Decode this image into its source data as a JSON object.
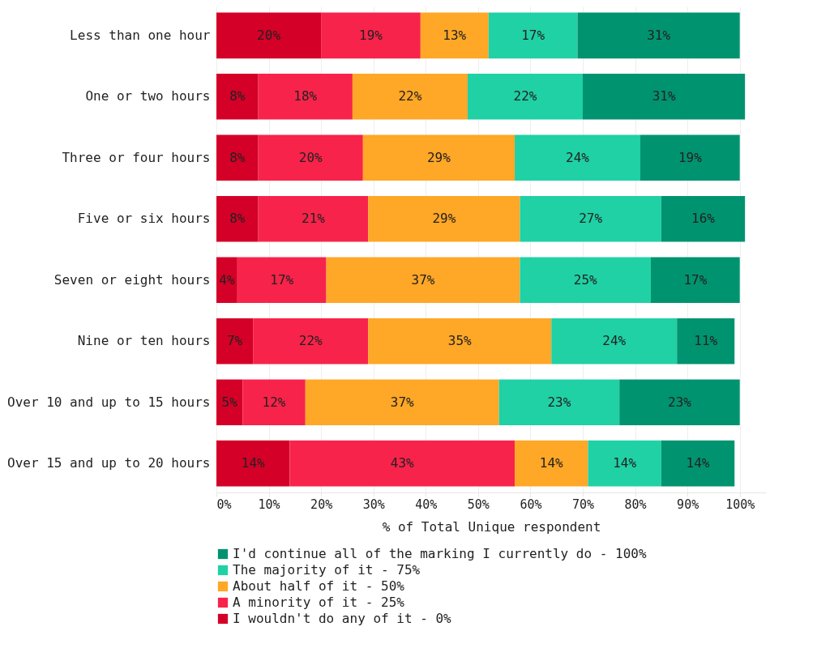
{
  "chart_data": {
    "type": "bar",
    "orientation": "horizontal",
    "stacked": true,
    "xlabel": "% of Total Unique respondent",
    "categories": [
      "Less than one hour",
      "One or two hours",
      "Three or four hours",
      "Five or six hours",
      "Seven or eight hours",
      "Nine or ten hours",
      "Over 10 and up to 15 hours",
      "Over 15 and up to 20 hours"
    ],
    "series": [
      {
        "name": "I wouldn't do any of it - 0%",
        "color": "#d40027",
        "values": [
          20,
          8,
          8,
          8,
          4,
          7,
          5,
          14
        ],
        "value_labels": [
          "20%",
          "8%",
          "8%",
          "8%",
          "4%",
          "7%",
          "5%",
          "14%"
        ]
      },
      {
        "name": "A minority of it - 25%",
        "color": "#f8234a",
        "values": [
          19,
          18,
          20,
          21,
          17,
          22,
          12,
          43
        ],
        "value_labels": [
          "19%",
          "18%",
          "20%",
          "21%",
          "17%",
          "22%",
          "12%",
          "43%"
        ]
      },
      {
        "name": "About half of it - 50%",
        "color": "#ffa726",
        "values": [
          13,
          22,
          29,
          29,
          37,
          35,
          37,
          14
        ],
        "value_labels": [
          "13%",
          "22%",
          "29%",
          "29%",
          "37%",
          "35%",
          "37%",
          "14%"
        ]
      },
      {
        "name": "The majority of it - 75%",
        "color": "#1fd1a5",
        "values": [
          17,
          22,
          24,
          27,
          25,
          24,
          23,
          14
        ],
        "value_labels": [
          "17%",
          "22%",
          "24%",
          "27%",
          "25%",
          "24%",
          "23%",
          "14%"
        ]
      },
      {
        "name": "I'd continue all of the marking I currently do - 100%",
        "color": "#00936f",
        "values": [
          31,
          31,
          19,
          16,
          17,
          11,
          23,
          14
        ],
        "value_labels": [
          "31%",
          "31%",
          "19%",
          "16%",
          "17%",
          "11%",
          "23%",
          "14%"
        ]
      }
    ],
    "xlim": [
      0,
      105
    ],
    "xticks": [
      {
        "value": 0,
        "label": "0%"
      },
      {
        "value": 10,
        "label": "10%"
      },
      {
        "value": 20,
        "label": "20%"
      },
      {
        "value": 30,
        "label": "30%"
      },
      {
        "value": 40,
        "label": "40%"
      },
      {
        "value": 50,
        "label": "50%"
      },
      {
        "value": 60,
        "label": "60%"
      },
      {
        "value": 70,
        "label": "70%"
      },
      {
        "value": 80,
        "label": "80%"
      },
      {
        "value": 90,
        "label": "90%"
      },
      {
        "value": 100,
        "label": "100%"
      }
    ],
    "grid": "x",
    "legend": "bottom left"
  }
}
